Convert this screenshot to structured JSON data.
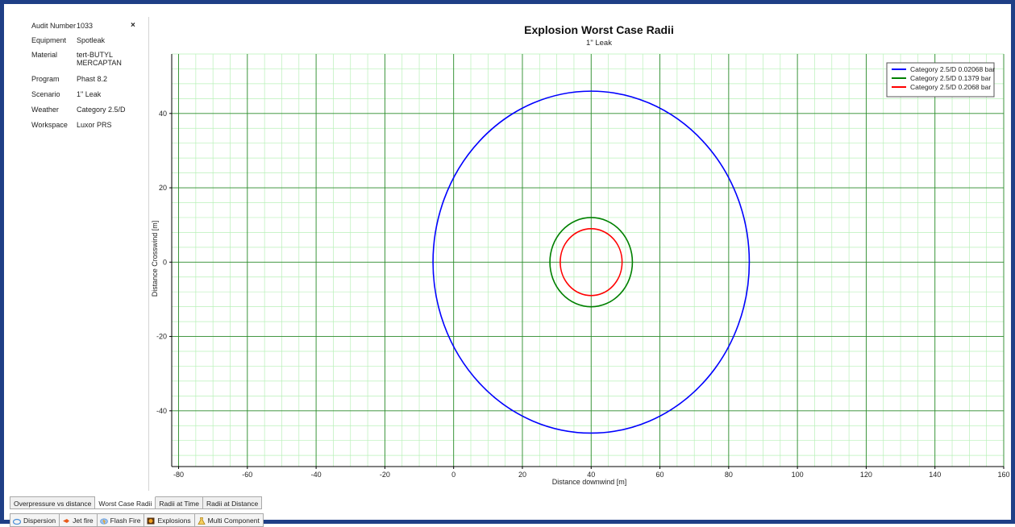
{
  "info_panel": {
    "close_icon": "×",
    "rows": [
      {
        "label": "Audit Number",
        "value": "1033"
      },
      {
        "label": "Equipment",
        "value": "Spotleak"
      },
      {
        "label": "Material",
        "value": "tert-BUTYL MERCAPTAN"
      },
      {
        "label": "Program",
        "value": "Phast 8.2"
      },
      {
        "label": "Scenario",
        "value": "1\" Leak"
      },
      {
        "label": "Weather",
        "value": "Category 2.5/D"
      },
      {
        "label": "Workspace",
        "value": "Luxor PRS"
      }
    ]
  },
  "chart_data": {
    "type": "scatter",
    "title": "Explosion Worst Case Radii",
    "subtitle": "1\" Leak",
    "xlabel": "Distance downwind [m]",
    "ylabel": "Distance Crosswind [m]",
    "xlim": [
      -82,
      160
    ],
    "ylim": [
      -55,
      56
    ],
    "xticks": [
      -80,
      -60,
      -40,
      -20,
      0,
      20,
      40,
      60,
      80,
      100,
      120,
      140,
      160
    ],
    "yticks": [
      40,
      20,
      0,
      -20,
      -40
    ],
    "grid": true,
    "legend_position": "top-right",
    "series": [
      {
        "name": "Category 2.5/D 0.02068 bar",
        "color": "#0000ff",
        "center": [
          40,
          0
        ],
        "radius": 46
      },
      {
        "name": "Category 2.5/D 0.1379 bar",
        "color": "#008000",
        "center": [
          40,
          0
        ],
        "radius": 12
      },
      {
        "name": "Category 2.5/D 0.2068 bar",
        "color": "#ff0000",
        "center": [
          40,
          0
        ],
        "radius": 9
      }
    ]
  },
  "result_tabs": [
    "Overpressure vs distance",
    "Worst Case Radii",
    "Radii at Time",
    "Radii at Distance"
  ],
  "active_tab": "Worst Case Radii",
  "module_tabs": [
    {
      "label": "Dispersion",
      "icon": "cloud-icon",
      "color": "#4a8fd8"
    },
    {
      "label": "Jet fire",
      "icon": "jet-fire-icon",
      "color": "#e85a1a"
    },
    {
      "label": "Flash Fire",
      "icon": "flash-fire-icon",
      "color": "#6aa0e0"
    },
    {
      "label": "Explosions",
      "icon": "explosion-icon",
      "color": "#b05a10"
    },
    {
      "label": "Multi Component",
      "icon": "flask-icon",
      "color": "#d8a020"
    }
  ]
}
